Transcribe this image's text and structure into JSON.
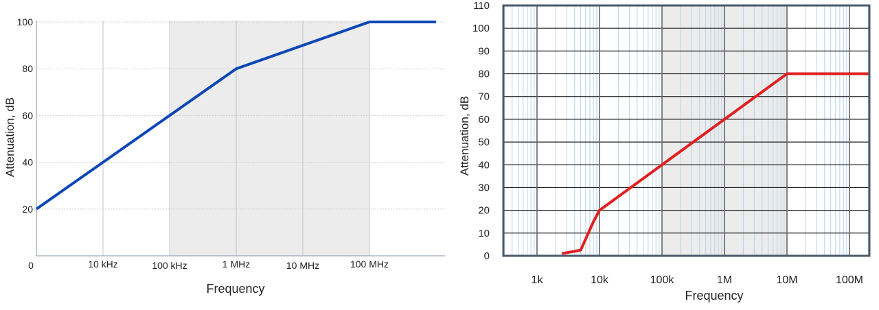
{
  "chart_data": [
    {
      "type": "line",
      "xscale": "log",
      "xlabel": "Frequency",
      "ylabel": "Attenuation, dB",
      "ylim": [
        0,
        100
      ],
      "x_tick_labels": [
        "0",
        "10 kHz",
        "100 kHz",
        "1 MHz",
        "10 MHz",
        "100 MHz"
      ],
      "y_ticks": [
        20,
        40,
        60,
        80,
        100
      ],
      "shaded_range": [
        "100 kHz",
        "100 MHz"
      ],
      "grid": true,
      "series": [
        {
          "color": "#0d47b5",
          "x": [
            "1 kHz",
            "10 kHz",
            "100 kHz",
            "1 MHz",
            "10 MHz",
            "100 MHz",
            "1 GHz"
          ],
          "y": [
            20,
            40,
            60,
            80,
            90,
            100,
            100
          ]
        }
      ]
    },
    {
      "type": "line",
      "xscale": "log",
      "xlabel": "Frequency",
      "ylabel": "Attenuation, dB",
      "ylim": [
        0,
        110
      ],
      "x_tick_labels": [
        "1k",
        "10k",
        "100k",
        "1M",
        "10M",
        "100M"
      ],
      "y_ticks": [
        0,
        10,
        20,
        30,
        40,
        50,
        60,
        70,
        80,
        90,
        100,
        110
      ],
      "shaded_range": [
        "100k",
        "10M"
      ],
      "grid": true,
      "series": [
        {
          "color": "#e02020",
          "x": [
            2500,
            4000,
            5000,
            8000,
            10000,
            10000000,
            200000000
          ],
          "y": [
            1,
            2,
            2.5,
            15,
            20,
            80,
            80
          ]
        }
      ]
    }
  ]
}
